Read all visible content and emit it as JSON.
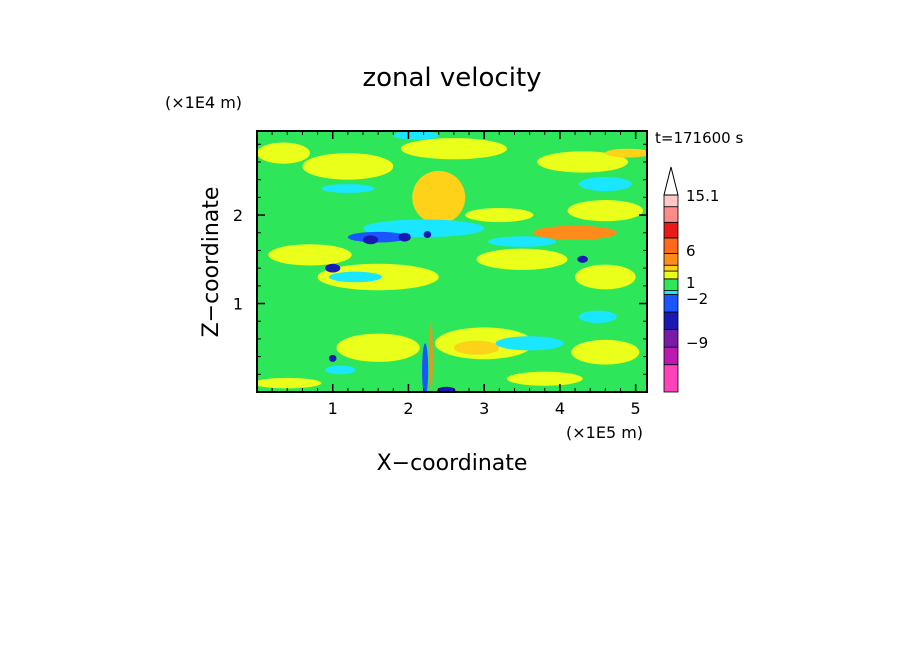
{
  "chart_data": {
    "type": "heatmap",
    "title": "zonal velocity",
    "time_label": "t=171600 s",
    "xlabel": "X−coordinate",
    "ylabel": "Z−coordinate",
    "x_unit": "(×1E5 m)",
    "y_unit": "(×1E4 m)",
    "xlim": [
      0,
      5.15
    ],
    "ylim": [
      0,
      2.95
    ],
    "x_ticks": [
      {
        "value": 1,
        "label": "1"
      },
      {
        "value": 2,
        "label": "2"
      },
      {
        "value": 3,
        "label": "3"
      },
      {
        "value": 4,
        "label": "4"
      },
      {
        "value": 5,
        "label": "5"
      }
    ],
    "y_ticks": [
      {
        "value": 1,
        "label": "1"
      },
      {
        "value": 2,
        "label": "2"
      }
    ],
    "colorbar": {
      "colors": [
        "#ff44bb",
        "#bb1ab0",
        "#7a1aa8",
        "#1a1ab2",
        "#1a55ff",
        "#1ae6ff",
        "#2ee65a",
        "#eaff1a",
        "#ffd21a",
        "#ff8c1a",
        "#ff6a1a",
        "#e81a1a",
        "#ff8a8a",
        "#ffc8c8",
        "#ffffff"
      ],
      "labels": [
        {
          "value": -9,
          "label": "−9"
        },
        {
          "value": -2,
          "label": "−2"
        },
        {
          "value": 1,
          "label": "1"
        },
        {
          "value": 6,
          "label": "6"
        },
        {
          "value": 15.1,
          "label": "15.1"
        }
      ]
    },
    "field": {
      "background": "#2ee65a",
      "blobs": [
        {
          "x": 0.35,
          "z": 2.7,
          "rx": 0.35,
          "rz": 0.12,
          "color": "#eaff1a"
        },
        {
          "x": 1.2,
          "z": 2.55,
          "rx": 0.6,
          "rz": 0.15,
          "color": "#eaff1a"
        },
        {
          "x": 2.6,
          "z": 2.75,
          "rx": 0.7,
          "rz": 0.12,
          "color": "#eaff1a"
        },
        {
          "x": 4.3,
          "z": 2.6,
          "rx": 0.6,
          "rz": 0.12,
          "color": "#eaff1a"
        },
        {
          "x": 4.6,
          "z": 2.05,
          "rx": 0.5,
          "rz": 0.12,
          "color": "#eaff1a"
        },
        {
          "x": 3.2,
          "z": 2.0,
          "rx": 0.45,
          "rz": 0.08,
          "color": "#eaff1a"
        },
        {
          "x": 0.7,
          "z": 1.55,
          "rx": 0.55,
          "rz": 0.12,
          "color": "#eaff1a"
        },
        {
          "x": 1.6,
          "z": 1.3,
          "rx": 0.8,
          "rz": 0.15,
          "color": "#eaff1a"
        },
        {
          "x": 3.5,
          "z": 1.5,
          "rx": 0.6,
          "rz": 0.12,
          "color": "#eaff1a"
        },
        {
          "x": 4.6,
          "z": 1.3,
          "rx": 0.4,
          "rz": 0.14,
          "color": "#eaff1a"
        },
        {
          "x": 1.6,
          "z": 0.5,
          "rx": 0.55,
          "rz": 0.16,
          "color": "#eaff1a"
        },
        {
          "x": 3.0,
          "z": 0.55,
          "rx": 0.65,
          "rz": 0.18,
          "color": "#eaff1a"
        },
        {
          "x": 4.6,
          "z": 0.45,
          "rx": 0.45,
          "rz": 0.14,
          "color": "#eaff1a"
        },
        {
          "x": 0.4,
          "z": 0.1,
          "rx": 0.45,
          "rz": 0.06,
          "color": "#eaff1a"
        },
        {
          "x": 3.8,
          "z": 0.15,
          "rx": 0.5,
          "rz": 0.08,
          "color": "#eaff1a"
        },
        {
          "x": 2.4,
          "z": 2.2,
          "rx": 0.35,
          "rz": 0.3,
          "color": "#ffd21a"
        },
        {
          "x": 4.2,
          "z": 1.8,
          "rx": 0.55,
          "rz": 0.08,
          "color": "#ff8c1a"
        },
        {
          "x": 2.9,
          "z": 0.5,
          "rx": 0.3,
          "rz": 0.08,
          "color": "#ffd21a"
        },
        {
          "x": 4.9,
          "z": 2.7,
          "rx": 0.3,
          "rz": 0.05,
          "color": "#ffd21a"
        },
        {
          "x": 1.2,
          "z": 2.3,
          "rx": 0.35,
          "rz": 0.05,
          "color": "#1ae6ff"
        },
        {
          "x": 2.2,
          "z": 1.85,
          "rx": 0.8,
          "rz": 0.1,
          "color": "#1ae6ff"
        },
        {
          "x": 3.5,
          "z": 1.7,
          "rx": 0.45,
          "rz": 0.06,
          "color": "#1ae6ff"
        },
        {
          "x": 4.6,
          "z": 2.35,
          "rx": 0.35,
          "rz": 0.08,
          "color": "#1ae6ff"
        },
        {
          "x": 2.1,
          "z": 2.9,
          "rx": 0.3,
          "rz": 0.05,
          "color": "#1ae6ff"
        },
        {
          "x": 1.3,
          "z": 1.3,
          "rx": 0.35,
          "rz": 0.06,
          "color": "#1ae6ff"
        },
        {
          "x": 3.6,
          "z": 0.55,
          "rx": 0.45,
          "rz": 0.08,
          "color": "#1ae6ff"
        },
        {
          "x": 4.5,
          "z": 0.85,
          "rx": 0.25,
          "rz": 0.07,
          "color": "#1ae6ff"
        },
        {
          "x": 1.1,
          "z": 0.25,
          "rx": 0.2,
          "rz": 0.05,
          "color": "#1ae6ff"
        },
        {
          "x": 1.6,
          "z": 1.75,
          "rx": 0.4,
          "rz": 0.06,
          "color": "#1a55ff"
        },
        {
          "x": 1.5,
          "z": 1.72,
          "rx": 0.1,
          "rz": 0.05,
          "color": "#1a1ab2"
        },
        {
          "x": 1.95,
          "z": 1.75,
          "rx": 0.08,
          "rz": 0.05,
          "color": "#1a1ab2"
        },
        {
          "x": 2.25,
          "z": 1.78,
          "rx": 0.05,
          "rz": 0.04,
          "color": "#1a1ab2"
        },
        {
          "x": 1.0,
          "z": 1.4,
          "rx": 0.1,
          "rz": 0.05,
          "color": "#1a1ab2"
        },
        {
          "x": 4.3,
          "z": 1.5,
          "rx": 0.07,
          "rz": 0.04,
          "color": "#1a1ab2"
        },
        {
          "x": 2.5,
          "z": 0.02,
          "rx": 0.12,
          "rz": 0.04,
          "color": "#1a1ab2"
        },
        {
          "x": 1.0,
          "z": 0.38,
          "rx": 0.05,
          "rz": 0.04,
          "color": "#1a1ab2"
        }
      ],
      "spikes": [
        {
          "x": 2.22,
          "z": 0.25,
          "rx": 0.04,
          "rz": 0.3,
          "color": "#1a55ff"
        },
        {
          "x": 2.3,
          "z": 0.4,
          "rx": 0.02,
          "rz": 0.4,
          "color": "#ff8c1a"
        }
      ]
    }
  }
}
